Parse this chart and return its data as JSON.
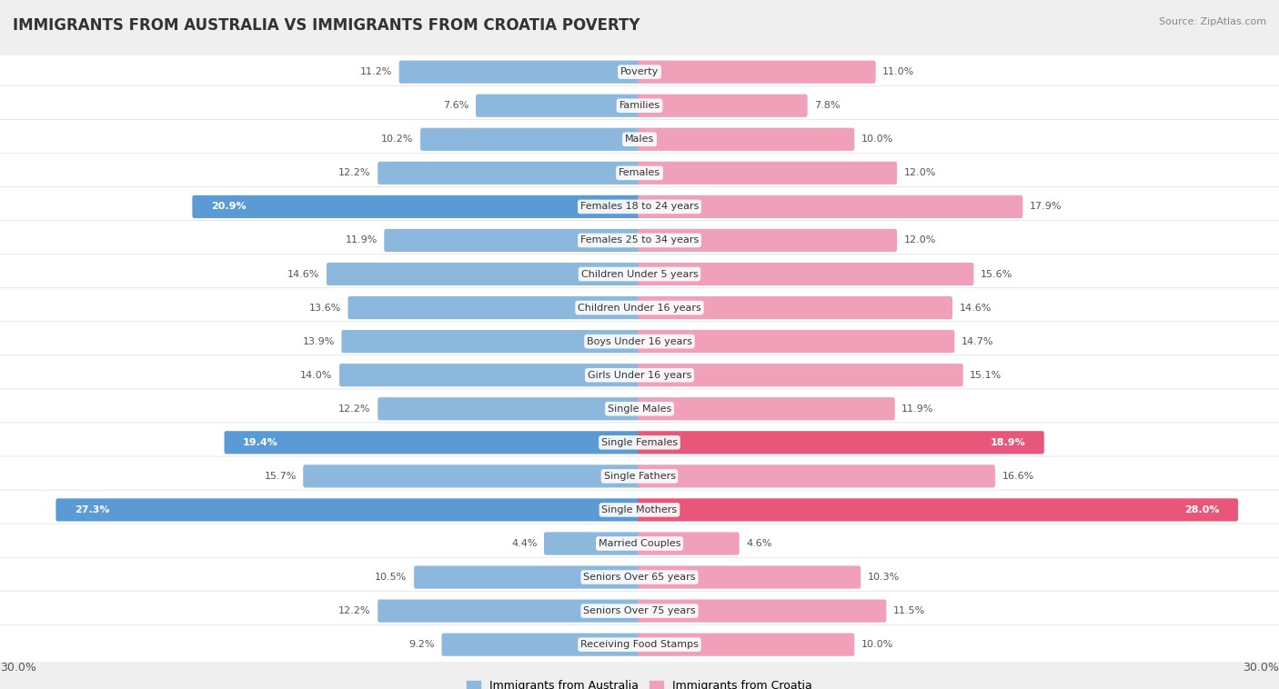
{
  "title": "IMMIGRANTS FROM AUSTRALIA VS IMMIGRANTS FROM CROATIA POVERTY",
  "source": "Source: ZipAtlas.com",
  "categories": [
    "Poverty",
    "Families",
    "Males",
    "Females",
    "Females 18 to 24 years",
    "Females 25 to 34 years",
    "Children Under 5 years",
    "Children Under 16 years",
    "Boys Under 16 years",
    "Girls Under 16 years",
    "Single Males",
    "Single Females",
    "Single Fathers",
    "Single Mothers",
    "Married Couples",
    "Seniors Over 65 years",
    "Seniors Over 75 years",
    "Receiving Food Stamps"
  ],
  "australia_values": [
    11.2,
    7.6,
    10.2,
    12.2,
    20.9,
    11.9,
    14.6,
    13.6,
    13.9,
    14.0,
    12.2,
    19.4,
    15.7,
    27.3,
    4.4,
    10.5,
    12.2,
    9.2
  ],
  "croatia_values": [
    11.0,
    7.8,
    10.0,
    12.0,
    17.9,
    12.0,
    15.6,
    14.6,
    14.7,
    15.1,
    11.9,
    18.9,
    16.6,
    28.0,
    4.6,
    10.3,
    11.5,
    10.0
  ],
  "australia_color": "#8cb8dd",
  "croatia_color": "#f0a0b8",
  "highlight_australia_color": "#5b9bd5",
  "highlight_croatia_color": "#e8567a",
  "background_color": "#efefef",
  "row_light_color": "#f7f7f7",
  "row_dark_color": "#e8e8e8",
  "axis_limit": 30.0,
  "highlight_threshold": 18.0,
  "legend_label_australia": "Immigrants from Australia",
  "legend_label_croatia": "Immigrants from Croatia"
}
